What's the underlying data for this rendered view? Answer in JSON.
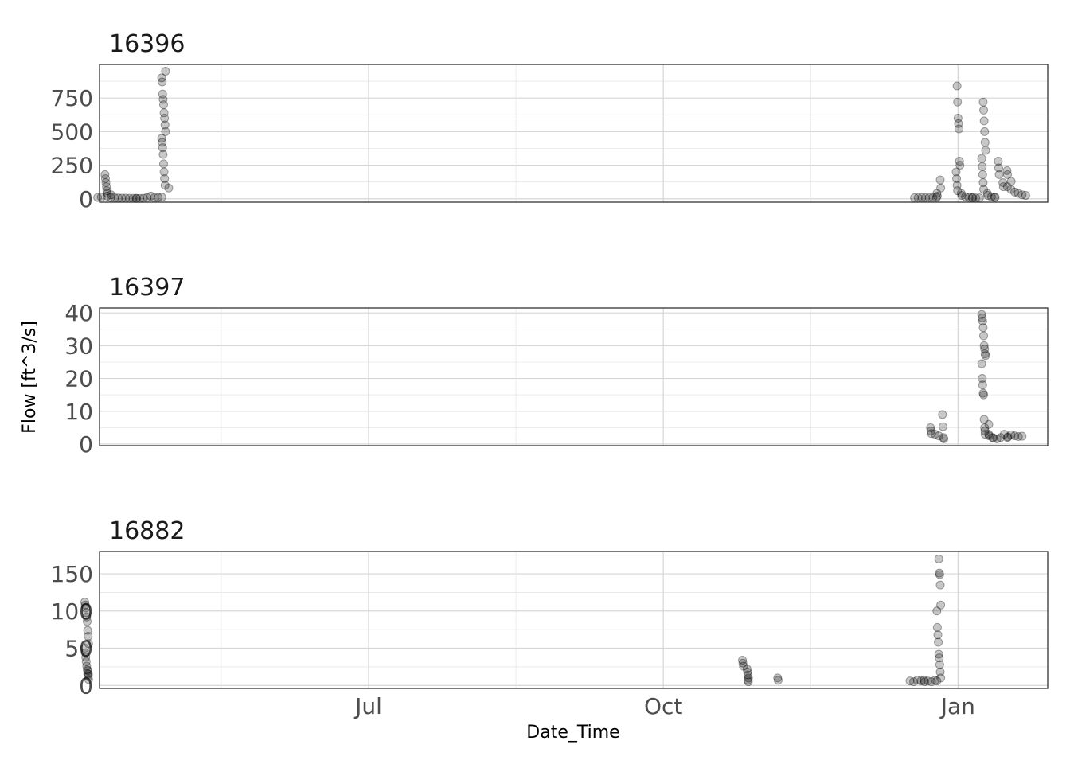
{
  "chart_data": {
    "type": "scatter",
    "xlabel": "Date_Time",
    "ylabel": "Flow [ft^3/s]",
    "x_ticks": [
      {
        "label": "Jul",
        "date": "2023-07-01"
      },
      {
        "label": "Oct",
        "date": "2023-10-01"
      },
      {
        "label": "Jan",
        "date": "2024-01-01"
      }
    ],
    "xlim": [
      "2023-04-08",
      "2024-01-29"
    ],
    "grid": true,
    "point_color": "#000000",
    "panels": [
      {
        "title": "16396",
        "ylim": [
          -25,
          1000
        ],
        "y_ticks": [
          0,
          250,
          500,
          750
        ],
        "points": [
          [
            "2023-04-08",
            10
          ],
          [
            "2023-04-09",
            12
          ],
          [
            "2023-04-10",
            180
          ],
          [
            "2023-04-10",
            150
          ],
          [
            "2023-04-10",
            120
          ],
          [
            "2023-04-10",
            90
          ],
          [
            "2023-04-10",
            60
          ],
          [
            "2023-04-10",
            40
          ],
          [
            "2023-04-11",
            30
          ],
          [
            "2023-04-11",
            20
          ],
          [
            "2023-04-12",
            10
          ],
          [
            "2023-04-13",
            8
          ],
          [
            "2023-04-14",
            6
          ],
          [
            "2023-04-15",
            5
          ],
          [
            "2023-04-16",
            5
          ],
          [
            "2023-04-17",
            4
          ],
          [
            "2023-04-18",
            4
          ],
          [
            "2023-04-19",
            3
          ],
          [
            "2023-04-20",
            3
          ],
          [
            "2023-04-21",
            3
          ],
          [
            "2023-04-22",
            4
          ],
          [
            "2023-04-23",
            10
          ],
          [
            "2023-04-24",
            20
          ],
          [
            "2023-04-25",
            8
          ],
          [
            "2023-04-26",
            10
          ],
          [
            "2023-04-27",
            12
          ],
          [
            "2023-04-28",
            950
          ],
          [
            "2023-04-28",
            900
          ],
          [
            "2023-04-28",
            870
          ],
          [
            "2023-04-28",
            780
          ],
          [
            "2023-04-28",
            740
          ],
          [
            "2023-04-28",
            700
          ],
          [
            "2023-04-28",
            640
          ],
          [
            "2023-04-28",
            600
          ],
          [
            "2023-04-28",
            550
          ],
          [
            "2023-04-28",
            500
          ],
          [
            "2023-04-28",
            450
          ],
          [
            "2023-04-28",
            420
          ],
          [
            "2023-04-28",
            380
          ],
          [
            "2023-04-28",
            330
          ],
          [
            "2023-04-28",
            260
          ],
          [
            "2023-04-28",
            200
          ],
          [
            "2023-04-28",
            150
          ],
          [
            "2023-04-28",
            100
          ],
          [
            "2023-04-29",
            80
          ],
          [
            "2023-12-19",
            8
          ],
          [
            "2023-12-20",
            8
          ],
          [
            "2023-12-21",
            9
          ],
          [
            "2023-12-22",
            8
          ],
          [
            "2023-12-23",
            9
          ],
          [
            "2023-12-24",
            10
          ],
          [
            "2023-12-25",
            10
          ],
          [
            "2023-12-26",
            140
          ],
          [
            "2023-12-26",
            80
          ],
          [
            "2023-12-26",
            40
          ],
          [
            "2023-12-26",
            20
          ],
          [
            "2024-01-01",
            840
          ],
          [
            "2024-01-01",
            720
          ],
          [
            "2024-01-01",
            600
          ],
          [
            "2024-01-01",
            560
          ],
          [
            "2024-01-01",
            520
          ],
          [
            "2024-01-01",
            280
          ],
          [
            "2024-01-01",
            250
          ],
          [
            "2024-01-01",
            200
          ],
          [
            "2024-01-01",
            150
          ],
          [
            "2024-01-01",
            100
          ],
          [
            "2024-01-01",
            60
          ],
          [
            "2024-01-02",
            40
          ],
          [
            "2024-01-02",
            25
          ],
          [
            "2024-01-03",
            15
          ],
          [
            "2024-01-04",
            10
          ],
          [
            "2024-01-05",
            8
          ],
          [
            "2024-01-06",
            8
          ],
          [
            "2024-01-07",
            7
          ],
          [
            "2024-01-08",
            7
          ],
          [
            "2024-01-09",
            720
          ],
          [
            "2024-01-09",
            660
          ],
          [
            "2024-01-09",
            580
          ],
          [
            "2024-01-09",
            500
          ],
          [
            "2024-01-09",
            420
          ],
          [
            "2024-01-09",
            360
          ],
          [
            "2024-01-09",
            300
          ],
          [
            "2024-01-09",
            240
          ],
          [
            "2024-01-09",
            180
          ],
          [
            "2024-01-09",
            120
          ],
          [
            "2024-01-09",
            70
          ],
          [
            "2024-01-10",
            40
          ],
          [
            "2024-01-10",
            25
          ],
          [
            "2024-01-11",
            15
          ],
          [
            "2024-01-12",
            12
          ],
          [
            "2024-01-13",
            10
          ],
          [
            "2024-01-14",
            280
          ],
          [
            "2024-01-14",
            230
          ],
          [
            "2024-01-14",
            180
          ],
          [
            "2024-01-15",
            120
          ],
          [
            "2024-01-15",
            90
          ],
          [
            "2024-01-16",
            210
          ],
          [
            "2024-01-16",
            180
          ],
          [
            "2024-01-17",
            130
          ],
          [
            "2024-01-17",
            90
          ],
          [
            "2024-01-18",
            70
          ],
          [
            "2024-01-19",
            50
          ],
          [
            "2024-01-20",
            40
          ],
          [
            "2024-01-21",
            30
          ],
          [
            "2024-01-22",
            25
          ]
        ]
      },
      {
        "title": "16397",
        "ylim": [
          -0.5,
          41.5
        ],
        "y_ticks": [
          0,
          10,
          20,
          30,
          40
        ],
        "points": [
          [
            "2023-12-24",
            5
          ],
          [
            "2023-12-24",
            4
          ],
          [
            "2023-12-24",
            3.2
          ],
          [
            "2023-12-25",
            3
          ],
          [
            "2023-12-26",
            2.5
          ],
          [
            "2023-12-27",
            9
          ],
          [
            "2023-12-27",
            5.3
          ],
          [
            "2023-12-27",
            2
          ],
          [
            "2023-12-27",
            1.6
          ],
          [
            "2024-01-09",
            39.5
          ],
          [
            "2024-01-09",
            38.5
          ],
          [
            "2024-01-09",
            37.5
          ],
          [
            "2024-01-09",
            35.5
          ],
          [
            "2024-01-09",
            33
          ],
          [
            "2024-01-09",
            30
          ],
          [
            "2024-01-09",
            29
          ],
          [
            "2024-01-09",
            27.5
          ],
          [
            "2024-01-09",
            27
          ],
          [
            "2024-01-09",
            24.5
          ],
          [
            "2024-01-09",
            20
          ],
          [
            "2024-01-09",
            18
          ],
          [
            "2024-01-09",
            15.5
          ],
          [
            "2024-01-09",
            15
          ],
          [
            "2024-01-09",
            7.5
          ],
          [
            "2024-01-09",
            5
          ],
          [
            "2024-01-09",
            3
          ],
          [
            "2024-01-10",
            6
          ],
          [
            "2024-01-10",
            4
          ],
          [
            "2024-01-11",
            3
          ],
          [
            "2024-01-11",
            2.5
          ],
          [
            "2024-01-12",
            2
          ],
          [
            "2024-01-12",
            1.8
          ],
          [
            "2024-01-13",
            1.6
          ],
          [
            "2024-01-14",
            2
          ],
          [
            "2024-01-15",
            3
          ],
          [
            "2024-01-16",
            2.2
          ],
          [
            "2024-01-17",
            2
          ],
          [
            "2024-01-18",
            2.8
          ],
          [
            "2024-01-19",
            2.5
          ],
          [
            "2024-01-20",
            2.3
          ],
          [
            "2024-01-21",
            2.4
          ]
        ]
      },
      {
        "title": "16882",
        "ylim": [
          -4,
          180
        ],
        "y_ticks": [
          0,
          50,
          100,
          150
        ],
        "points": [
          [
            "2023-04-04",
            112
          ],
          [
            "2023-04-04",
            108
          ],
          [
            "2023-04-04",
            104
          ],
          [
            "2023-04-04",
            98
          ],
          [
            "2023-04-04",
            92
          ],
          [
            "2023-04-04",
            86
          ],
          [
            "2023-04-04",
            74
          ],
          [
            "2023-04-04",
            66
          ],
          [
            "2023-04-04",
            56
          ],
          [
            "2023-04-04",
            50
          ],
          [
            "2023-04-04",
            44
          ],
          [
            "2023-04-04",
            38
          ],
          [
            "2023-04-04",
            32
          ],
          [
            "2023-04-04",
            26
          ],
          [
            "2023-04-04",
            21
          ],
          [
            "2023-04-04",
            16
          ],
          [
            "2023-04-04",
            12
          ],
          [
            "2023-04-04",
            8
          ],
          [
            "2023-04-05",
            20
          ],
          [
            "2023-04-05",
            15
          ],
          [
            "2023-10-26",
            34
          ],
          [
            "2023-10-26",
            30
          ],
          [
            "2023-10-26",
            26
          ],
          [
            "2023-10-27",
            22
          ],
          [
            "2023-10-27",
            18
          ],
          [
            "2023-10-27",
            14
          ],
          [
            "2023-10-27",
            10
          ],
          [
            "2023-10-28",
            7
          ],
          [
            "2023-10-28",
            5
          ],
          [
            "2023-11-06",
            10
          ],
          [
            "2023-11-06",
            7
          ],
          [
            "2023-12-17",
            6
          ],
          [
            "2023-12-18",
            5
          ],
          [
            "2023-12-19",
            7
          ],
          [
            "2023-12-20",
            6
          ],
          [
            "2023-12-21",
            5
          ],
          [
            "2023-12-22",
            7
          ],
          [
            "2023-12-23",
            6
          ],
          [
            "2023-12-24",
            5
          ],
          [
            "2023-12-25",
            7
          ],
          [
            "2023-12-26",
            170
          ],
          [
            "2023-12-26",
            151
          ],
          [
            "2023-12-26",
            149
          ],
          [
            "2023-12-26",
            135
          ],
          [
            "2023-12-26",
            108
          ],
          [
            "2023-12-26",
            100
          ],
          [
            "2023-12-26",
            78
          ],
          [
            "2023-12-26",
            68
          ],
          [
            "2023-12-26",
            58
          ],
          [
            "2023-12-26",
            42
          ],
          [
            "2023-12-26",
            37
          ],
          [
            "2023-12-26",
            28
          ],
          [
            "2023-12-26",
            18
          ],
          [
            "2023-12-26",
            10
          ],
          [
            "2023-12-26",
            6
          ]
        ]
      }
    ]
  }
}
